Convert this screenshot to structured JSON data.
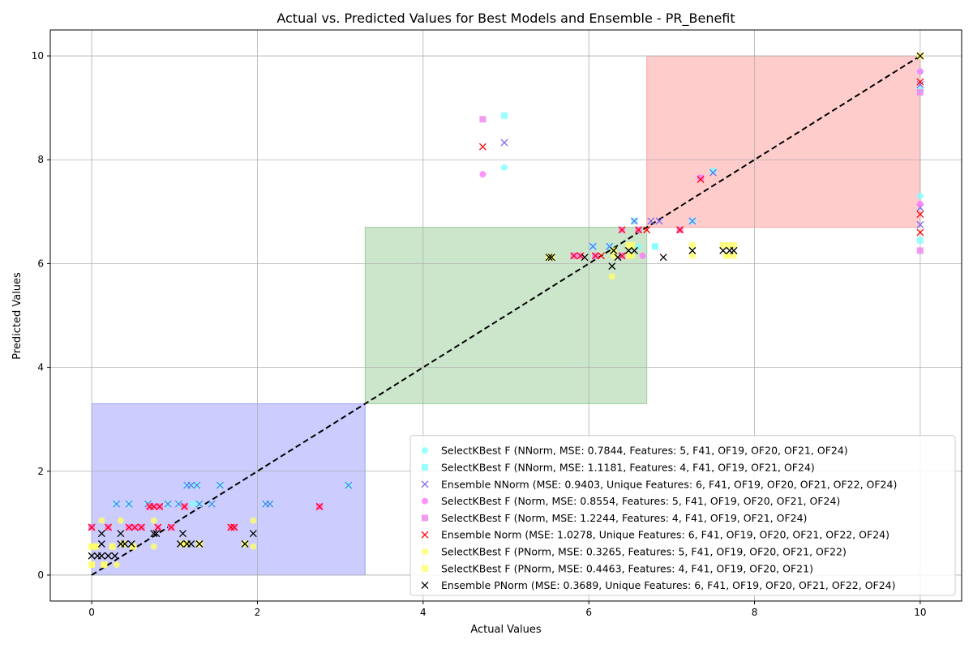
{
  "chart_data": {
    "type": "scatter",
    "title": "Actual vs. Predicted Values for Best Models and Ensemble - PR_Benefit",
    "xlabel": "Actual Values",
    "ylabel": "Predicted Values",
    "xlim": [
      -0.5,
      10.5
    ],
    "ylim": [
      -0.5,
      10.5
    ],
    "xticks": [
      0,
      2,
      4,
      6,
      8,
      10
    ],
    "yticks": [
      0,
      2,
      4,
      6,
      8,
      10
    ],
    "grid": true,
    "legend_position": "lower-right",
    "regions": [
      {
        "name": "low",
        "x": [
          0,
          3.3
        ],
        "y": [
          0,
          3.3
        ],
        "color": "#0000ff"
      },
      {
        "name": "mid",
        "x": [
          3.3,
          6.7
        ],
        "y": [
          3.3,
          6.7
        ],
        "color": "#008000"
      },
      {
        "name": "high",
        "x": [
          6.7,
          10
        ],
        "y": [
          6.7,
          10
        ],
        "color": "#ff0000"
      }
    ],
    "reference_line": {
      "x": [
        0,
        10
      ],
      "y": [
        0,
        10
      ],
      "color": "#000000",
      "style": "dashed"
    },
    "series": [
      {
        "name": "SelectKBest F (NNorm, MSE: 0.7844, Features: 5, F41, OF19, OF20, OF21, OF24)",
        "marker": "circle",
        "color": "#7fffff",
        "points": [
          [
            0.3,
            1.37
          ],
          [
            0.45,
            1.37
          ],
          [
            0.68,
            1.37
          ],
          [
            0.92,
            1.37
          ],
          [
            1.05,
            1.37
          ],
          [
            1.15,
            1.73
          ],
          [
            1.2,
            1.73
          ],
          [
            1.27,
            1.73
          ],
          [
            1.55,
            1.73
          ],
          [
            1.22,
            1.37
          ],
          [
            1.3,
            1.37
          ],
          [
            1.45,
            1.37
          ],
          [
            2.1,
            1.37
          ],
          [
            2.15,
            1.37
          ],
          [
            3.1,
            1.73
          ],
          [
            4.98,
            7.85
          ],
          [
            6.05,
            6.33
          ],
          [
            6.25,
            6.33
          ],
          [
            6.55,
            6.82
          ],
          [
            6.8,
            6.33
          ],
          [
            6.6,
            6.33
          ],
          [
            7.25,
            6.82
          ],
          [
            7.5,
            7.78
          ],
          [
            10,
            7.3
          ],
          [
            10,
            9.7
          ]
        ]
      },
      {
        "name": "SelectKBest F (NNorm, MSE: 1.1181, Features: 4, F41, OF19, OF21, OF24)",
        "marker": "square",
        "color": "#7fffff",
        "points": [
          [
            0.3,
            1.37
          ],
          [
            0.45,
            1.37
          ],
          [
            0.68,
            1.37
          ],
          [
            0.92,
            1.37
          ],
          [
            1.05,
            1.37
          ],
          [
            1.15,
            1.73
          ],
          [
            1.27,
            1.73
          ],
          [
            1.55,
            1.73
          ],
          [
            1.3,
            1.37
          ],
          [
            2.1,
            1.37
          ],
          [
            3.1,
            1.73
          ],
          [
            4.98,
            8.85
          ],
          [
            6.05,
            6.33
          ],
          [
            6.25,
            6.33
          ],
          [
            6.55,
            6.82
          ],
          [
            6.8,
            6.33
          ],
          [
            7.25,
            6.82
          ],
          [
            7.5,
            7.78
          ],
          [
            10,
            6.45
          ],
          [
            10,
            9.35
          ]
        ]
      },
      {
        "name": "Ensemble NNorm (MSE: 0.9403, Unique Features: 6, F41, OF19, OF20, OF21, OF22, OF24)",
        "marker": "x",
        "color": "#7b68ee",
        "points": [
          [
            0.3,
            1.37
          ],
          [
            0.45,
            1.37
          ],
          [
            0.68,
            1.37
          ],
          [
            0.92,
            1.37
          ],
          [
            1.05,
            1.37
          ],
          [
            1.15,
            1.73
          ],
          [
            1.2,
            1.73
          ],
          [
            1.27,
            1.73
          ],
          [
            1.55,
            1.73
          ],
          [
            1.3,
            1.37
          ],
          [
            1.45,
            1.37
          ],
          [
            2.1,
            1.37
          ],
          [
            2.15,
            1.37
          ],
          [
            3.1,
            1.73
          ],
          [
            4.98,
            8.33
          ],
          [
            6.05,
            6.33
          ],
          [
            6.25,
            6.33
          ],
          [
            6.55,
            6.82
          ],
          [
            6.75,
            6.82
          ],
          [
            6.85,
            6.82
          ],
          [
            7.25,
            6.82
          ],
          [
            7.5,
            7.75
          ],
          [
            10,
            7.08
          ],
          [
            10,
            6.75
          ],
          [
            10,
            9.45
          ]
        ]
      },
      {
        "name": "SelectKBest F (Norm, MSE: 0.8554, Features: 5, F41, OF19, OF20, OF21, OF24)",
        "marker": "circle",
        "color": "#ff77ff",
        "points": [
          [
            0,
            0.92
          ],
          [
            0.2,
            0.92
          ],
          [
            0.45,
            0.92
          ],
          [
            0.52,
            0.92
          ],
          [
            0.6,
            0.92
          ],
          [
            0.7,
            1.32
          ],
          [
            0.75,
            1.32
          ],
          [
            0.82,
            1.32
          ],
          [
            0.8,
            0.92
          ],
          [
            0.96,
            0.92
          ],
          [
            1.12,
            1.32
          ],
          [
            1.68,
            0.92
          ],
          [
            1.72,
            0.92
          ],
          [
            2.75,
            1.32
          ],
          [
            4.72,
            7.72
          ],
          [
            5.82,
            6.15
          ],
          [
            5.9,
            6.15
          ],
          [
            6.08,
            6.15
          ],
          [
            6.4,
            6.15
          ],
          [
            6.4,
            6.65
          ],
          [
            6.65,
            6.15
          ],
          [
            6.6,
            6.65
          ],
          [
            7.1,
            6.65
          ],
          [
            7.35,
            7.65
          ],
          [
            10,
            7.15
          ],
          [
            10,
            9.7
          ]
        ]
      },
      {
        "name": "SelectKBest F (Norm, MSE: 1.2244, Features: 4, F41, OF19, OF21, OF24)",
        "marker": "square",
        "color": "#ee82ee",
        "points": [
          [
            0,
            0.92
          ],
          [
            0.2,
            0.92
          ],
          [
            0.45,
            0.92
          ],
          [
            0.6,
            0.92
          ],
          [
            0.7,
            1.32
          ],
          [
            0.82,
            1.32
          ],
          [
            0.96,
            0.92
          ],
          [
            1.12,
            1.32
          ],
          [
            1.72,
            0.92
          ],
          [
            2.75,
            1.32
          ],
          [
            4.72,
            8.78
          ],
          [
            5.82,
            6.15
          ],
          [
            6.08,
            6.15
          ],
          [
            6.4,
            6.15
          ],
          [
            6.6,
            6.65
          ],
          [
            7.1,
            6.65
          ],
          [
            7.35,
            7.65
          ],
          [
            10,
            6.25
          ],
          [
            10,
            9.3
          ]
        ]
      },
      {
        "name": "Ensemble Norm (MSE: 1.0278, Unique Features: 6, F41, OF19, OF20, OF21, OF22, OF24)",
        "marker": "x",
        "color": "#ff0000",
        "points": [
          [
            0,
            0.92
          ],
          [
            0.2,
            0.92
          ],
          [
            0.45,
            0.92
          ],
          [
            0.52,
            0.92
          ],
          [
            0.6,
            0.92
          ],
          [
            0.7,
            1.32
          ],
          [
            0.75,
            1.32
          ],
          [
            0.82,
            1.32
          ],
          [
            0.8,
            0.92
          ],
          [
            0.96,
            0.92
          ],
          [
            1.12,
            1.32
          ],
          [
            1.68,
            0.92
          ],
          [
            1.72,
            0.92
          ],
          [
            2.75,
            1.32
          ],
          [
            4.72,
            8.25
          ],
          [
            5.82,
            6.15
          ],
          [
            5.9,
            6.15
          ],
          [
            6.08,
            6.15
          ],
          [
            6.15,
            6.15
          ],
          [
            6.4,
            6.15
          ],
          [
            6.4,
            6.65
          ],
          [
            6.6,
            6.65
          ],
          [
            6.7,
            6.65
          ],
          [
            7.1,
            6.65
          ],
          [
            7.35,
            7.62
          ],
          [
            10,
            6.95
          ],
          [
            10,
            6.6
          ],
          [
            10,
            9.5
          ]
        ]
      },
      {
        "name": "SelectKBest F (PNorm, MSE: 0.3265, Features: 5, F41, OF19, OF20, OF21, OF22)",
        "marker": "circle",
        "color": "#ffff66",
        "points": [
          [
            0,
            0.55
          ],
          [
            0,
            0.2
          ],
          [
            0.05,
            0.55
          ],
          [
            0.12,
            1.05
          ],
          [
            0.15,
            0.2
          ],
          [
            0.25,
            0.55
          ],
          [
            0.3,
            0.2
          ],
          [
            0.35,
            1.05
          ],
          [
            0.38,
            0.6
          ],
          [
            0.5,
            0.55
          ],
          [
            0.75,
            0.55
          ],
          [
            0.75,
            1.05
          ],
          [
            1.1,
            0.6
          ],
          [
            1.15,
            0.6
          ],
          [
            1.3,
            0.6
          ],
          [
            1.85,
            0.6
          ],
          [
            1.95,
            1.05
          ],
          [
            1.95,
            0.55
          ],
          [
            5.52,
            6.12
          ],
          [
            5.55,
            6.12
          ],
          [
            6.28,
            5.75
          ],
          [
            6.3,
            6.15
          ],
          [
            6.48,
            6.15
          ],
          [
            6.52,
            6.15
          ],
          [
            7.25,
            6.15
          ],
          [
            7.65,
            6.15
          ],
          [
            7.7,
            6.15
          ],
          [
            7.75,
            6.15
          ],
          [
            10,
            10
          ]
        ]
      },
      {
        "name": "SelectKBest F (PNorm, MSE: 0.4463, Features: 4, F41, OF19, OF20, OF21)",
        "marker": "square",
        "color": "#ffff66",
        "points": [
          [
            0,
            0.55
          ],
          [
            0,
            0.2
          ],
          [
            0.05,
            0.55
          ],
          [
            0.15,
            0.2
          ],
          [
            0.25,
            0.55
          ],
          [
            0.38,
            0.6
          ],
          [
            0.5,
            0.55
          ],
          [
            1.1,
            0.6
          ],
          [
            1.3,
            0.6
          ],
          [
            1.85,
            0.6
          ],
          [
            5.52,
            6.12
          ],
          [
            5.55,
            6.12
          ],
          [
            6.3,
            6.25
          ],
          [
            6.48,
            6.35
          ],
          [
            6.52,
            6.35
          ],
          [
            7.25,
            6.35
          ],
          [
            7.62,
            6.35
          ],
          [
            7.68,
            6.35
          ],
          [
            7.75,
            6.35
          ],
          [
            10,
            10
          ]
        ]
      },
      {
        "name": "Ensemble PNorm (MSE: 0.3689, Unique Features: 6, F41, OF19, OF20, OF21, OF22, OF24)",
        "marker": "x",
        "color": "#000000",
        "points": [
          [
            0,
            0.37
          ],
          [
            0.07,
            0.37
          ],
          [
            0.12,
            0.37
          ],
          [
            0.12,
            0.6
          ],
          [
            0.12,
            0.8
          ],
          [
            0.2,
            0.37
          ],
          [
            0.28,
            0.37
          ],
          [
            0.35,
            0.8
          ],
          [
            0.35,
            0.6
          ],
          [
            0.4,
            0.6
          ],
          [
            0.48,
            0.6
          ],
          [
            0.75,
            0.8
          ],
          [
            0.78,
            0.8
          ],
          [
            1.07,
            0.6
          ],
          [
            1.1,
            0.8
          ],
          [
            1.15,
            0.6
          ],
          [
            1.2,
            0.6
          ],
          [
            1.3,
            0.6
          ],
          [
            1.85,
            0.6
          ],
          [
            1.95,
            0.8
          ],
          [
            5.52,
            6.12
          ],
          [
            5.55,
            6.12
          ],
          [
            5.95,
            6.12
          ],
          [
            6.28,
            5.95
          ],
          [
            6.3,
            6.25
          ],
          [
            6.35,
            6.12
          ],
          [
            6.48,
            6.25
          ],
          [
            6.55,
            6.25
          ],
          [
            6.9,
            6.12
          ],
          [
            7.25,
            6.25
          ],
          [
            7.62,
            6.25
          ],
          [
            7.7,
            6.25
          ],
          [
            7.75,
            6.25
          ],
          [
            10,
            10
          ]
        ]
      }
    ]
  }
}
